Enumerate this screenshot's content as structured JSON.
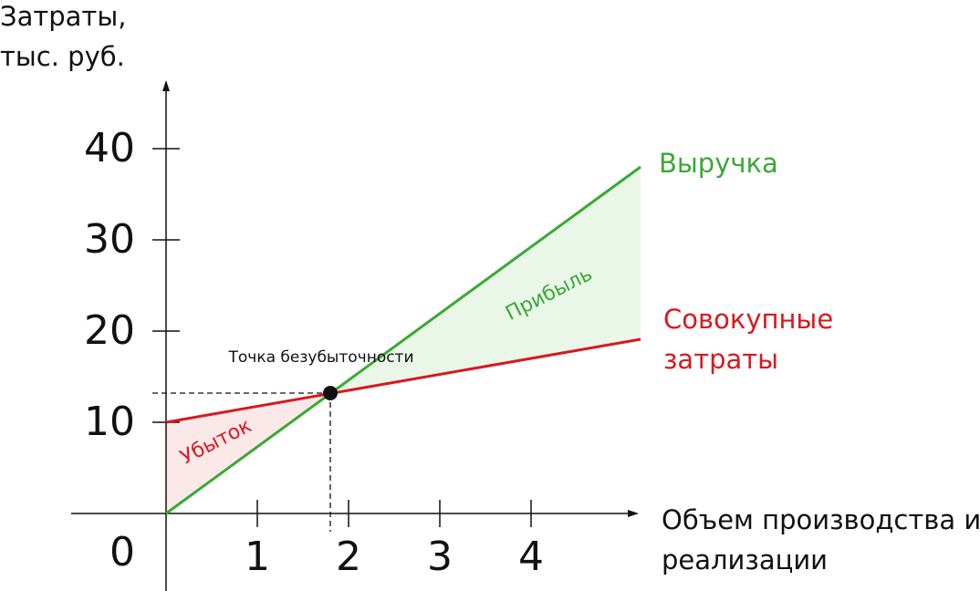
{
  "chart_data": {
    "type": "line",
    "y_axis_label": "Затраты, тыс. руб.",
    "x_axis_label": "Объем производства и реализации",
    "origin_label": "0",
    "x": [
      0,
      5.2
    ],
    "series": [
      {
        "name": "Выручка",
        "color": "#3aa935",
        "values": [
          0,
          38
        ]
      },
      {
        "name": "Совокупные затраты",
        "color": "#d7191f",
        "values": [
          10,
          19.1
        ]
      }
    ],
    "break_even": {
      "label": "Точка безубыточности",
      "x": 1.8,
      "y": 13.2
    },
    "profit_label": "Прибыль",
    "loss_label": "Убыток",
    "xlim": [
      -1.04,
      5.18
    ],
    "ylim": [
      -8.5,
      47.5
    ],
    "xticks": [
      1,
      2,
      3,
      4
    ],
    "yticks": [
      10,
      20,
      30,
      40
    ]
  }
}
